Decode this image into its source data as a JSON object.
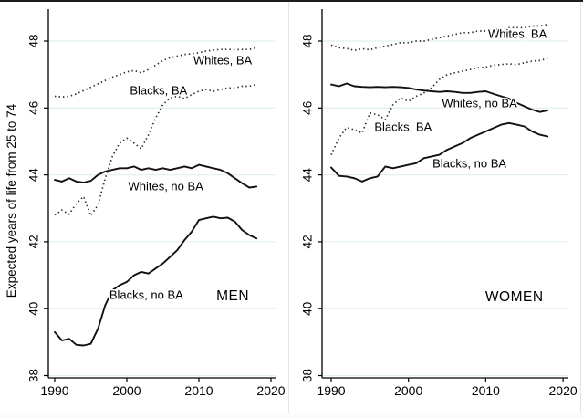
{
  "figure": {
    "y_axis_title": "Expected years of life from 25 to 74",
    "y_ticks": [
      38,
      40,
      42,
      44,
      46,
      48
    ],
    "x_ticks": [
      1990,
      2000,
      2010,
      2020
    ],
    "colors": {
      "solid_line": "#111111",
      "dotted_line": "#2b2b2b",
      "gridline": "#e4f0ee",
      "axis": "#000000",
      "background": "#ffffff"
    }
  },
  "chart_data": [
    {
      "type": "line",
      "panel_title": "MEN",
      "xlabel": "",
      "ylabel": "Expected years of life from 25 to 74",
      "x_range": [
        1990,
        2020
      ],
      "ylim": [
        38,
        48.6
      ],
      "grid": true,
      "years": [
        1990,
        1991,
        1992,
        1993,
        1994,
        1995,
        1996,
        1997,
        1998,
        1999,
        2000,
        2001,
        2002,
        2003,
        2004,
        2005,
        2006,
        2007,
        2008,
        2009,
        2010,
        2011,
        2012,
        2013,
        2014,
        2015,
        2016,
        2017,
        2018
      ],
      "series": [
        {
          "name": "Whites, BA",
          "style": "dotted",
          "values": [
            46.35,
            46.33,
            46.35,
            46.42,
            46.52,
            46.62,
            46.72,
            46.82,
            46.92,
            47.0,
            47.08,
            47.12,
            47.05,
            47.15,
            47.28,
            47.42,
            47.5,
            47.55,
            47.6,
            47.62,
            47.65,
            47.7,
            47.73,
            47.75,
            47.75,
            47.74,
            47.75,
            47.75,
            47.8
          ]
        },
        {
          "name": "Blacks, BA",
          "style": "dotted",
          "values": [
            42.8,
            42.95,
            42.82,
            43.15,
            43.35,
            42.78,
            43.1,
            43.9,
            44.55,
            44.95,
            45.1,
            44.95,
            44.78,
            45.2,
            45.7,
            46.1,
            46.3,
            46.35,
            46.28,
            46.4,
            46.5,
            46.55,
            46.5,
            46.55,
            46.6,
            46.6,
            46.65,
            46.65,
            46.7
          ]
        },
        {
          "name": "Whites, no BA",
          "style": "solid",
          "values": [
            43.85,
            43.8,
            43.9,
            43.8,
            43.77,
            43.82,
            44.0,
            44.1,
            44.15,
            44.2,
            44.2,
            44.25,
            44.15,
            44.2,
            44.15,
            44.2,
            44.15,
            44.2,
            44.25,
            44.2,
            44.3,
            44.25,
            44.2,
            44.15,
            44.05,
            43.9,
            43.75,
            43.62,
            43.65
          ]
        },
        {
          "name": "Blacks, no BA",
          "style": "solid",
          "values": [
            39.3,
            39.05,
            39.1,
            38.92,
            38.9,
            38.95,
            39.4,
            40.1,
            40.55,
            40.7,
            40.8,
            41.0,
            41.1,
            41.05,
            41.2,
            41.35,
            41.55,
            41.75,
            42.05,
            42.3,
            42.65,
            42.7,
            42.75,
            42.7,
            42.72,
            42.6,
            42.35,
            42.2,
            42.1
          ]
        }
      ],
      "annotations": [
        {
          "label": "Whites, BA",
          "x": 2013.3,
          "y": 47.4
        },
        {
          "label": "Blacks, BA",
          "x": 2004.4,
          "y": 46.5
        },
        {
          "label": "Whites, no BA",
          "x": 2005.4,
          "y": 43.63
        },
        {
          "label": "Blacks, no BA",
          "x": 2002.7,
          "y": 40.39
        },
        {
          "label": "MEN",
          "x": 2014.7,
          "y": 40.36,
          "is_title": true
        }
      ]
    },
    {
      "type": "line",
      "panel_title": "WOMEN",
      "xlabel": "",
      "ylabel": "",
      "x_range": [
        1990,
        2020
      ],
      "ylim": [
        38,
        48.6
      ],
      "grid": true,
      "years": [
        1990,
        1991,
        1992,
        1993,
        1994,
        1995,
        1996,
        1997,
        1998,
        1999,
        2000,
        2001,
        2002,
        2003,
        2004,
        2005,
        2006,
        2007,
        2008,
        2009,
        2010,
        2011,
        2012,
        2013,
        2014,
        2015,
        2016,
        2017,
        2018
      ],
      "series": [
        {
          "name": "Whites, BA",
          "style": "dotted",
          "values": [
            47.88,
            47.8,
            47.78,
            47.72,
            47.77,
            47.74,
            47.8,
            47.85,
            47.9,
            47.95,
            47.95,
            48.0,
            48.0,
            48.05,
            48.1,
            48.15,
            48.2,
            48.25,
            48.25,
            48.3,
            48.3,
            48.35,
            48.35,
            48.4,
            48.4,
            48.4,
            48.45,
            48.45,
            48.5
          ]
        },
        {
          "name": "Blacks, BA",
          "style": "dotted",
          "values": [
            44.6,
            45.1,
            45.42,
            45.35,
            45.25,
            45.85,
            45.8,
            45.65,
            46.1,
            46.3,
            46.2,
            46.35,
            46.45,
            46.6,
            46.85,
            47.0,
            47.05,
            47.1,
            47.15,
            47.2,
            47.22,
            47.28,
            47.3,
            47.32,
            47.3,
            47.35,
            47.4,
            47.42,
            47.48
          ]
        },
        {
          "name": "Whites, no BA",
          "style": "solid",
          "values": [
            46.7,
            46.65,
            46.73,
            46.65,
            46.63,
            46.62,
            46.63,
            46.62,
            46.63,
            46.62,
            46.6,
            46.55,
            46.52,
            46.5,
            46.48,
            46.5,
            46.48,
            46.45,
            46.45,
            46.48,
            46.5,
            46.42,
            46.35,
            46.28,
            46.15,
            46.05,
            45.95,
            45.88,
            45.93
          ]
        },
        {
          "name": "Blacks, no BA",
          "style": "solid",
          "values": [
            44.22,
            43.97,
            43.95,
            43.9,
            43.8,
            43.9,
            43.95,
            44.25,
            44.2,
            44.25,
            44.3,
            44.35,
            44.5,
            44.55,
            44.6,
            44.75,
            44.85,
            44.95,
            45.1,
            45.2,
            45.3,
            45.4,
            45.5,
            45.55,
            45.5,
            45.45,
            45.3,
            45.2,
            45.15
          ]
        }
      ],
      "annotations": [
        {
          "label": "Whites, BA",
          "x": 2014.1,
          "y": 48.19
        },
        {
          "label": "Whites, no BA",
          "x": 2009.2,
          "y": 46.12
        },
        {
          "label": "Blacks, BA",
          "x": 1999.3,
          "y": 45.41
        },
        {
          "label": "Blacks, no BA",
          "x": 2007.9,
          "y": 44.32
        },
        {
          "label": "WOMEN",
          "x": 2013.7,
          "y": 40.33,
          "is_title": true
        }
      ]
    }
  ]
}
